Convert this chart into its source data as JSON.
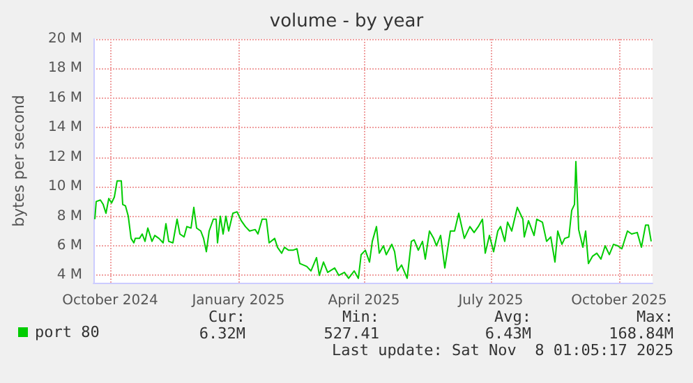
{
  "chart_data": {
    "type": "line",
    "title": "volume - by year",
    "ylabel": "bytes per second",
    "x": [
      "2024-10-04",
      "2024-10-05",
      "2024-10-08",
      "2024-10-10",
      "2024-10-12",
      "2024-10-14",
      "2024-10-16",
      "2024-10-18",
      "2024-10-20",
      "2024-10-23",
      "2024-10-24",
      "2024-10-26",
      "2024-10-28",
      "2024-10-30",
      "2024-11-01",
      "2024-11-02",
      "2024-11-05",
      "2024-11-07",
      "2024-11-09",
      "2024-11-11",
      "2024-11-14",
      "2024-11-16",
      "2024-11-19",
      "2024-11-22",
      "2024-11-24",
      "2024-11-26",
      "2024-11-29",
      "2024-12-02",
      "2024-12-04",
      "2024-12-07",
      "2024-12-09",
      "2024-12-12",
      "2024-12-14",
      "2024-12-16",
      "2024-12-19",
      "2024-12-21",
      "2024-12-23",
      "2024-12-25",
      "2024-12-28",
      "2024-12-30",
      "2024-12-31",
      "2025-01-02",
      "2025-01-04",
      "2025-01-06",
      "2025-01-08",
      "2025-01-11",
      "2025-01-14",
      "2025-01-17",
      "2025-01-20",
      "2025-01-23",
      "2025-01-27",
      "2025-01-29",
      "2025-02-01",
      "2025-02-04",
      "2025-02-06",
      "2025-02-10",
      "2025-02-12",
      "2025-02-15",
      "2025-02-17",
      "2025-02-20",
      "2025-02-23",
      "2025-02-26",
      "2025-02-28",
      "2025-03-05",
      "2025-03-08",
      "2025-03-12",
      "2025-03-14",
      "2025-03-17",
      "2025-03-20",
      "2025-03-25",
      "2025-03-28",
      "2025-04-01",
      "2025-04-04",
      "2025-04-08",
      "2025-04-11",
      "2025-04-13",
      "2025-04-16",
      "2025-04-19",
      "2025-04-21",
      "2025-04-24",
      "2025-04-26",
      "2025-04-29",
      "2025-05-01",
      "2025-05-05",
      "2025-05-07",
      "2025-05-09",
      "2025-05-12",
      "2025-05-16",
      "2025-05-19",
      "2025-05-21",
      "2025-05-24",
      "2025-05-27",
      "2025-05-29",
      "2025-06-01",
      "2025-06-04",
      "2025-06-06",
      "2025-06-09",
      "2025-06-12",
      "2025-06-16",
      "2025-06-19",
      "2025-06-22",
      "2025-06-26",
      "2025-06-30",
      "2025-07-03",
      "2025-07-06",
      "2025-07-09",
      "2025-07-11",
      "2025-07-14",
      "2025-07-17",
      "2025-07-20",
      "2025-07-22",
      "2025-07-25",
      "2025-07-27",
      "2025-07-30",
      "2025-08-03",
      "2025-08-07",
      "2025-08-08",
      "2025-08-11",
      "2025-08-15",
      "2025-08-17",
      "2025-08-21",
      "2025-08-24",
      "2025-08-27",
      "2025-08-30",
      "2025-09-01",
      "2025-09-04",
      "2025-09-06",
      "2025-09-09",
      "2025-09-11",
      "2025-09-13",
      "2025-09-14",
      "2025-09-16",
      "2025-09-19",
      "2025-09-21",
      "2025-09-23",
      "2025-09-26",
      "2025-09-29",
      "2025-10-02",
      "2025-10-05",
      "2025-10-08",
      "2025-10-11",
      "2025-10-14",
      "2025-10-17",
      "2025-10-21",
      "2025-10-24",
      "2025-10-28",
      "2025-10-31",
      "2025-11-03",
      "2025-11-05",
      "2025-11-07"
    ],
    "series": [
      {
        "name": "port 80",
        "color": "#00cc00",
        "values": [
          7.8,
          9.0,
          9.1,
          8.8,
          8.2,
          9.2,
          8.9,
          9.3,
          10.4,
          10.4,
          8.8,
          8.7,
          8.0,
          6.5,
          6.2,
          6.5,
          6.5,
          6.8,
          6.3,
          7.2,
          6.3,
          6.7,
          6.5,
          6.2,
          7.5,
          6.3,
          6.2,
          7.8,
          6.8,
          6.6,
          7.3,
          7.2,
          8.6,
          7.2,
          7.0,
          6.5,
          5.6,
          7.0,
          7.8,
          7.8,
          6.2,
          8.0,
          6.8,
          8.0,
          7.0,
          8.2,
          8.3,
          7.7,
          7.3,
          7.0,
          7.1,
          6.8,
          7.8,
          7.8,
          6.2,
          6.5,
          5.9,
          5.5,
          5.9,
          5.7,
          5.7,
          5.8,
          4.8,
          4.6,
          4.3,
          5.2,
          4.0,
          4.9,
          4.2,
          4.5,
          4.0,
          4.2,
          3.8,
          4.3,
          3.8,
          5.4,
          5.7,
          4.9,
          6.3,
          7.3,
          5.5,
          6.0,
          5.4,
          6.1,
          5.6,
          4.3,
          4.7,
          3.8,
          6.3,
          6.4,
          5.7,
          6.3,
          5.1,
          7.0,
          6.5,
          6.0,
          6.7,
          4.5,
          7.0,
          7.0,
          8.2,
          6.5,
          7.3,
          6.9,
          7.3,
          7.8,
          5.5,
          6.7,
          5.6,
          7.0,
          7.3,
          6.3,
          7.6,
          7.0,
          8.6,
          7.8,
          6.6,
          7.7,
          6.7,
          7.8,
          7.6,
          6.3,
          6.6,
          4.9,
          7.0,
          6.1,
          6.5,
          6.6,
          8.4,
          8.8,
          11.7,
          7.1,
          5.9,
          7.0,
          4.8,
          5.3,
          5.5,
          5.1,
          6.0,
          5.4,
          6.1,
          6.0,
          5.8,
          7.0,
          6.8,
          6.9,
          5.9,
          7.4,
          7.4,
          6.3
        ]
      }
    ],
    "xlim": [
      "2024-10-03",
      "2025-11-08"
    ],
    "xticks": [
      {
        "value": "2024-10-15",
        "label": "October 2024"
      },
      {
        "value": "2025-01-15",
        "label": "January 2025"
      },
      {
        "value": "2025-04-15",
        "label": "April 2025"
      },
      {
        "value": "2025-07-15",
        "label": "July 2025"
      },
      {
        "value": "2025-10-15",
        "label": "October 2025"
      }
    ],
    "ylim": [
      3.5,
      20
    ],
    "yticks": [
      {
        "value": 4,
        "label": "4 M"
      },
      {
        "value": 6,
        "label": "6 M"
      },
      {
        "value": 8,
        "label": "8 M"
      },
      {
        "value": 10,
        "label": "10 M"
      },
      {
        "value": 12,
        "label": "12 M"
      },
      {
        "value": 14,
        "label": "14 M"
      },
      {
        "value": 16,
        "label": "16 M"
      },
      {
        "value": 18,
        "label": "18 M"
      },
      {
        "value": 20,
        "label": "20 M"
      }
    ],
    "grid": true,
    "legend": "bottom left",
    "marker": "none",
    "line_style": "solid",
    "annotations": [
      "Cur:",
      "Min:",
      "Avg:",
      "Max:",
      "6.32M",
      "527.41",
      "6.43M",
      "168.84M",
      "Last update: Sat Nov  8 01:05:17 2025"
    ]
  }
}
